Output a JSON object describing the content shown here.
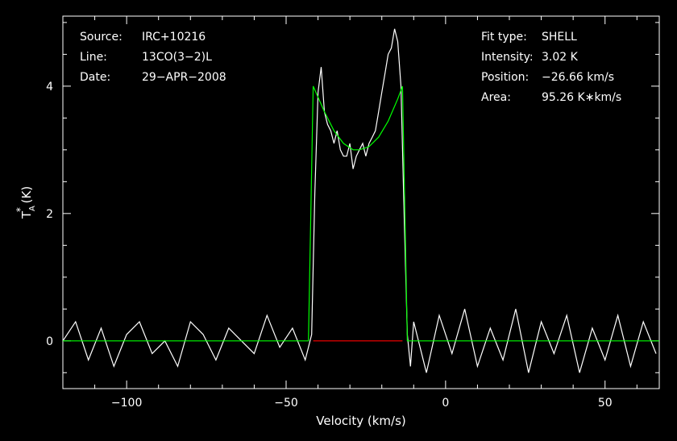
{
  "chart_data": {
    "type": "line",
    "xlabel": "Velocity (km/s)",
    "ylabel_main": "T",
    "ylabel_sub": "A",
    "ylabel_sup": "*",
    "ylabel_unit": " (K)",
    "xlim": [
      -120,
      67
    ],
    "ylim": [
      -0.75,
      5.1
    ],
    "xticks": [
      -100,
      -50,
      0,
      50
    ],
    "xtick_labels": [
      "−100",
      "−50",
      "0",
      "50"
    ],
    "yticks": [
      0,
      2,
      4
    ],
    "ytick_labels": [
      "0",
      "2",
      "4"
    ],
    "info_left": [
      {
        "key": "Source:",
        "value": "IRC+10216"
      },
      {
        "key": "Line:",
        "value": "13CO(3−2)L"
      },
      {
        "key": "Date:",
        "value": "29−APR−2008"
      }
    ],
    "info_right": [
      {
        "key": "Fit type:",
        "value": "SHELL"
      },
      {
        "key": "Intensity:",
        "value": "3.02 K"
      },
      {
        "key": "Position:",
        "value": "−26.66 km/s"
      },
      {
        "key": "Area:",
        "value": "95.26 K∗km/s"
      }
    ],
    "series": [
      {
        "role": "observed-spectrum",
        "color": "#ffffff",
        "x": [
          -120,
          -116,
          -112,
          -108,
          -104,
          -100,
          -96,
          -92,
          -88,
          -84,
          -80,
          -76,
          -72,
          -68,
          -64,
          -60,
          -56,
          -52,
          -48,
          -44,
          -42,
          -41,
          -40,
          -39,
          -38,
          -37,
          -36,
          -35,
          -34,
          -33,
          -32,
          -31,
          -30,
          -29,
          -28,
          -27,
          -26,
          -25,
          -24,
          -23,
          -22,
          -21,
          -20,
          -19,
          -18,
          -17,
          -16,
          -15,
          -14,
          -13,
          -12,
          -11,
          -10,
          -6,
          -2,
          2,
          6,
          10,
          14,
          18,
          22,
          26,
          30,
          34,
          38,
          42,
          46,
          50,
          54,
          58,
          62,
          66
        ],
        "y": [
          0.0,
          0.3,
          -0.3,
          0.2,
          -0.4,
          0.1,
          0.3,
          -0.2,
          0.0,
          -0.4,
          0.3,
          0.1,
          -0.3,
          0.2,
          0.0,
          -0.2,
          0.4,
          -0.1,
          0.2,
          -0.3,
          0.1,
          2.3,
          3.9,
          4.3,
          3.6,
          3.4,
          3.3,
          3.1,
          3.3,
          3.0,
          2.9,
          2.9,
          3.1,
          2.7,
          2.9,
          3.0,
          3.1,
          2.9,
          3.1,
          3.2,
          3.3,
          3.6,
          3.9,
          4.2,
          4.5,
          4.6,
          4.9,
          4.7,
          4.0,
          2.0,
          0.1,
          -0.4,
          0.3,
          -0.5,
          0.4,
          -0.2,
          0.5,
          -0.4,
          0.2,
          -0.3,
          0.5,
          -0.5,
          0.3,
          -0.2,
          0.4,
          -0.5,
          0.2,
          -0.3,
          0.4,
          -0.4,
          0.3,
          -0.2
        ]
      },
      {
        "role": "shell-fit",
        "color": "#00ff00",
        "x": [
          -120,
          -43,
          -41.5,
          -38,
          -35,
          -32,
          -29,
          -27,
          -24,
          -21,
          -18,
          -15,
          -13.5,
          -12,
          67
        ],
        "y": [
          0.0,
          0.0,
          4.0,
          3.6,
          3.3,
          3.1,
          3.0,
          3.0,
          3.05,
          3.2,
          3.45,
          3.8,
          4.0,
          0.0,
          0.0
        ]
      },
      {
        "role": "fit-window-baseline",
        "color": "#ff0000",
        "x": [
          -41.5,
          -13.5
        ],
        "y": [
          0.0,
          0.0
        ]
      }
    ]
  }
}
